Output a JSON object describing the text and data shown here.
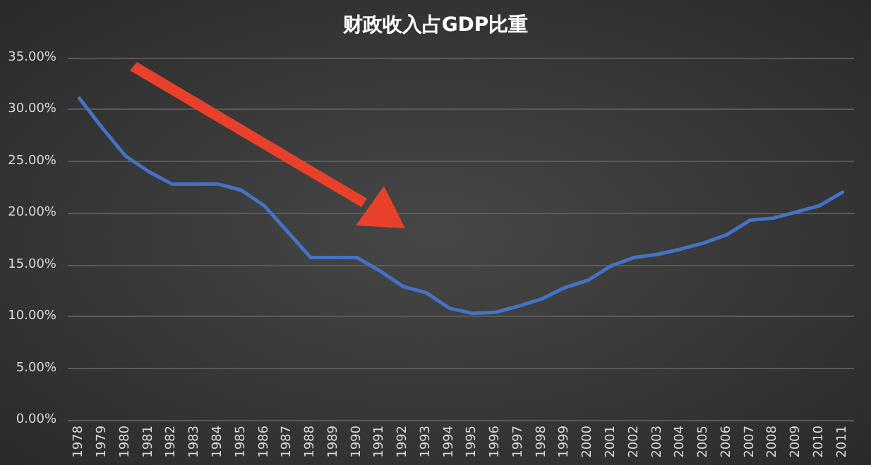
{
  "chart_data": {
    "type": "line",
    "title": "财政收入占GDP比重",
    "categories": [
      "1978",
      "1979",
      "1980",
      "1981",
      "1982",
      "1983",
      "1984",
      "1985",
      "1986",
      "1987",
      "1988",
      "1989",
      "1990",
      "1991",
      "1992",
      "1993",
      "1994",
      "1995",
      "1996",
      "1997",
      "1998",
      "1999",
      "2000",
      "2001",
      "2002",
      "2003",
      "2004",
      "2005",
      "2006",
      "2007",
      "2008",
      "2009",
      "2010",
      "2011"
    ],
    "series": [
      {
        "color": "#4472c4",
        "values": [
          31.1,
          28.2,
          25.5,
          24.0,
          22.8,
          22.8,
          22.8,
          22.2,
          20.7,
          18.2,
          15.7,
          15.7,
          15.7,
          14.4,
          12.9,
          12.3,
          10.8,
          10.3,
          10.4,
          11.0,
          11.7,
          12.8,
          13.5,
          14.9,
          15.7,
          16.0,
          16.5,
          17.1,
          17.9,
          19.3,
          19.5,
          20.1,
          20.7,
          22.0
        ]
      }
    ],
    "ylim": [
      0,
      35
    ],
    "yticks": [
      {
        "value": 0,
        "label": "0.00%"
      },
      {
        "value": 5,
        "label": "5.00%"
      },
      {
        "value": 10,
        "label": "10.00%"
      },
      {
        "value": 15,
        "label": "15.00%"
      },
      {
        "value": 20,
        "label": "20.00%"
      },
      {
        "value": 25,
        "label": "25.00%"
      },
      {
        "value": 30,
        "label": "30.00%"
      },
      {
        "value": 35,
        "label": "35.00%"
      }
    ],
    "grid": "y",
    "marker": "none",
    "line_style": "solid"
  }
}
